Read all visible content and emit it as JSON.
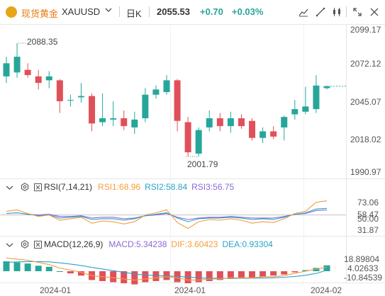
{
  "header": {
    "title": "现货黄金",
    "symbol": "XAUUSD",
    "period": "日K",
    "price": "2055.53",
    "change": "+0.70",
    "change_pct": "+0.03%",
    "icons": [
      "eye-icon",
      "chevron-down-icon",
      "line-chart-icon",
      "line-style-icon",
      "candle-style-icon",
      "expand-icon",
      "close-icon"
    ]
  },
  "colors": {
    "up": "#26a69a",
    "down": "#e0505a",
    "brand": "#e8790e",
    "rsi1": "#f59d3d",
    "rsi2": "#2aa3c9",
    "rsi3": "#8b6ad6",
    "dif": "#f59d3d",
    "dea": "#2aa3c9"
  },
  "price_axis": [
    "2099.17",
    "2072.12",
    "2045.07",
    "2018.02",
    "1990.97"
  ],
  "annotations": {
    "high": "2088.35",
    "low": "2001.79"
  },
  "rsi": {
    "label": "RSI(7,14,21)",
    "rsi1": "RSI1:68.96",
    "rsi2": "RSI2:58.84",
    "rsi3": "RSI3:56.75",
    "axis": [
      "73.06",
      "58.47",
      "50.00",
      "31.87"
    ]
  },
  "macd": {
    "label": "MACD(12,26,9)",
    "macd": "MACD:5.34238",
    "dif": "DIF:3.60423",
    "dea": "DEA:0.93304",
    "axis": [
      "18.89804",
      "4.02633",
      "-10.84539"
    ]
  },
  "x_axis": [
    "2024-01",
    "2024-01",
    "2024-02"
  ],
  "chart_data": {
    "type": "candlestick",
    "price_range": [
      1990.97,
      2099.17
    ],
    "candles": [
      {
        "o": 2063,
        "h": 2078,
        "l": 2058,
        "c": 2073
      },
      {
        "o": 2066,
        "h": 2088.35,
        "l": 2062,
        "c": 2078
      },
      {
        "o": 2068,
        "h": 2073,
        "l": 2062,
        "c": 2064
      },
      {
        "o": 2063,
        "h": 2068,
        "l": 2053,
        "c": 2058
      },
      {
        "o": 2060,
        "h": 2067,
        "l": 2054,
        "c": 2063
      },
      {
        "o": 2060,
        "h": 2061,
        "l": 2035,
        "c": 2044
      },
      {
        "o": 2045,
        "h": 2049,
        "l": 2040,
        "c": 2045
      },
      {
        "o": 2047,
        "h": 2058,
        "l": 2043,
        "c": 2048
      },
      {
        "o": 2048,
        "h": 2050,
        "l": 2021,
        "c": 2027
      },
      {
        "o": 2028,
        "h": 2050,
        "l": 2025,
        "c": 2031
      },
      {
        "o": 2030,
        "h": 2044,
        "l": 2025,
        "c": 2031
      },
      {
        "o": 2031,
        "h": 2037,
        "l": 2022,
        "c": 2025
      },
      {
        "o": 2024,
        "h": 2036,
        "l": 2019,
        "c": 2030
      },
      {
        "o": 2031,
        "h": 2054,
        "l": 2028,
        "c": 2049
      },
      {
        "o": 2049,
        "h": 2056,
        "l": 2046,
        "c": 2053
      },
      {
        "o": 2051,
        "h": 2064,
        "l": 2049,
        "c": 2060
      },
      {
        "o": 2060,
        "h": 2061,
        "l": 2021,
        "c": 2029
      },
      {
        "o": 2028,
        "h": 2032,
        "l": 2002,
        "c": 2005
      },
      {
        "o": 2004,
        "h": 2024,
        "l": 2001.79,
        "c": 2022
      },
      {
        "o": 2024,
        "h": 2037,
        "l": 2021,
        "c": 2031
      },
      {
        "o": 2031,
        "h": 2035,
        "l": 2021,
        "c": 2025
      },
      {
        "o": 2025,
        "h": 2036,
        "l": 2020,
        "c": 2031
      },
      {
        "o": 2031,
        "h": 2034,
        "l": 2023,
        "c": 2025
      },
      {
        "o": 2029,
        "h": 2031,
        "l": 2014,
        "c": 2016
      },
      {
        "o": 2016,
        "h": 2024,
        "l": 2012,
        "c": 2021
      },
      {
        "o": 2021,
        "h": 2025,
        "l": 2015,
        "c": 2017
      },
      {
        "o": 2024,
        "h": 2033,
        "l": 2014,
        "c": 2032
      },
      {
        "o": 2034,
        "h": 2045,
        "l": 2030,
        "c": 2038
      },
      {
        "o": 2036,
        "h": 2055,
        "l": 2034,
        "c": 2040
      },
      {
        "o": 2038,
        "h": 2064,
        "l": 2035,
        "c": 2056
      },
      {
        "o": 2054,
        "h": 2056,
        "l": 2053,
        "c": 2055.53
      }
    ],
    "rsi1": [
      55,
      57,
      52,
      48,
      50,
      43,
      45,
      47,
      39,
      42,
      41,
      38,
      41,
      50,
      53,
      57,
      40,
      32,
      41,
      44,
      43,
      45,
      43,
      39,
      41,
      40,
      45,
      52,
      55,
      67,
      68.96
    ],
    "rsi2": [
      52,
      53,
      51,
      49,
      50,
      46,
      47,
      48,
      44,
      45,
      45,
      43,
      45,
      49,
      51,
      53,
      46,
      41,
      45,
      46,
      46,
      47,
      46,
      44,
      45,
      44,
      47,
      51,
      53,
      58,
      58.84
    ],
    "rsi3": [
      52,
      53,
      51,
      50,
      51,
      48,
      48,
      49,
      46,
      47,
      47,
      45,
      46,
      49,
      50,
      52,
      47,
      44,
      46,
      47,
      47,
      48,
      47,
      46,
      46,
      46,
      48,
      51,
      52,
      56,
      56.75
    ],
    "macd_hist": [
      9,
      8,
      7,
      5,
      4,
      0,
      -2,
      -4,
      -8,
      -9,
      -10,
      -11,
      -12,
      -10,
      -9,
      -8,
      -10,
      -11,
      -10,
      -9,
      -8,
      -7,
      -6,
      -6,
      -5,
      -4,
      -3,
      -1,
      1,
      3,
      5.34
    ],
    "dif": [
      12,
      11,
      10,
      8,
      6,
      3,
      1,
      -1,
      -4,
      -5,
      -6,
      -7,
      -8,
      -7,
      -6,
      -5,
      -6,
      -8,
      -8,
      -7,
      -7,
      -6,
      -6,
      -6,
      -5,
      -5,
      -4,
      -2,
      0,
      2,
      3.6
    ],
    "dea": [
      8,
      8.5,
      8.8,
      8.8,
      8.5,
      7.6,
      6.5,
      5.2,
      3.5,
      2,
      0.5,
      -1,
      -2.5,
      -3.5,
      -4,
      -4.3,
      -4.7,
      -5.3,
      -6,
      -6.3,
      -6.5,
      -6.5,
      -6.4,
      -6.3,
      -6.2,
      -6,
      -5.5,
      -4.8,
      -3.7,
      -2,
      0.93
    ]
  }
}
